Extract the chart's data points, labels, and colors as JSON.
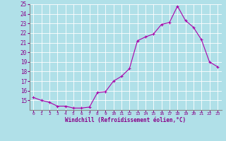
{
  "x": [
    0,
    1,
    2,
    3,
    4,
    5,
    6,
    7,
    8,
    9,
    10,
    11,
    12,
    13,
    14,
    15,
    16,
    17,
    18,
    19,
    20,
    21,
    22,
    23
  ],
  "y": [
    15.3,
    15.0,
    14.8,
    14.4,
    14.4,
    14.2,
    14.2,
    14.3,
    15.8,
    15.9,
    17.0,
    17.5,
    18.3,
    21.2,
    21.6,
    21.9,
    22.9,
    23.1,
    24.8,
    23.3,
    22.6,
    21.3,
    19.0,
    18.5
  ],
  "xlim": [
    -0.5,
    23.5
  ],
  "ylim": [
    14,
    25
  ],
  "yticks": [
    15,
    16,
    17,
    18,
    19,
    20,
    21,
    22,
    23,
    24,
    25
  ],
  "xticks": [
    0,
    1,
    2,
    3,
    4,
    5,
    6,
    7,
    8,
    9,
    10,
    11,
    12,
    13,
    14,
    15,
    16,
    17,
    18,
    19,
    20,
    21,
    22,
    23
  ],
  "xlabel": "Windchill (Refroidissement éolien,°C)",
  "line_color": "#aa00aa",
  "marker": "+",
  "bg_color": "#b0e0e8",
  "grid_color": "#ffffff",
  "title": ""
}
